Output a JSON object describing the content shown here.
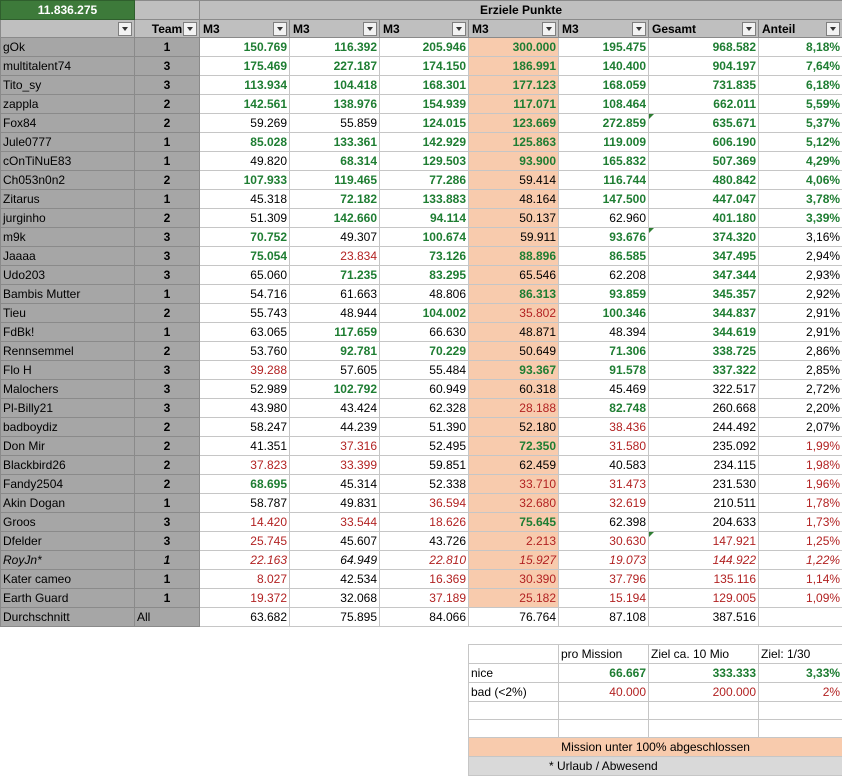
{
  "header": {
    "total": "11.836.275",
    "group_title": "Erziele Punkte",
    "columns": [
      "Team",
      "M3",
      "M3",
      "M3",
      "M3",
      "M3",
      "Gesamt",
      "Anteil"
    ]
  },
  "rows": [
    {
      "name": "gOk",
      "team": "1",
      "m": [
        "150.769",
        "116.392",
        "205.946",
        "300.000",
        "195.475"
      ],
      "c": [
        "g",
        "g",
        "g",
        "g",
        "g"
      ],
      "total": "968.582",
      "tc": "g",
      "share": "8,18%",
      "sc": "g"
    },
    {
      "name": "multitalent74",
      "team": "3",
      "m": [
        "175.469",
        "227.187",
        "174.150",
        "186.991",
        "140.400"
      ],
      "c": [
        "g",
        "g",
        "g",
        "g",
        "g"
      ],
      "total": "904.197",
      "tc": "g",
      "share": "7,64%",
      "sc": "g"
    },
    {
      "name": "Tito_sy",
      "team": "3",
      "m": [
        "113.934",
        "104.418",
        "168.301",
        "177.123",
        "168.059"
      ],
      "c": [
        "g",
        "g",
        "g",
        "g",
        "g"
      ],
      "total": "731.835",
      "tc": "g",
      "share": "6,18%",
      "sc": "g"
    },
    {
      "name": "zappla",
      "team": "2",
      "m": [
        "142.561",
        "138.976",
        "154.939",
        "117.071",
        "108.464"
      ],
      "c": [
        "g",
        "g",
        "g",
        "g",
        "g"
      ],
      "total": "662.011",
      "tc": "g",
      "share": "5,59%",
      "sc": "g"
    },
    {
      "name": "Fox84",
      "team": "2",
      "m": [
        "59.269",
        "55.859",
        "124.015",
        "123.669",
        "272.859"
      ],
      "c": [
        "k",
        "k",
        "g",
        "g",
        "g"
      ],
      "total": "635.671",
      "tc": "g",
      "share": "5,37%",
      "sc": "g"
    },
    {
      "name": "Jule0777",
      "team": "1",
      "m": [
        "85.028",
        "133.361",
        "142.929",
        "125.863",
        "119.009"
      ],
      "c": [
        "g",
        "g",
        "g",
        "g",
        "g"
      ],
      "total": "606.190",
      "tc": "g",
      "share": "5,12%",
      "sc": "g"
    },
    {
      "name": "cOnTiNuE83",
      "team": "1",
      "m": [
        "49.820",
        "68.314",
        "129.503",
        "93.900",
        "165.832"
      ],
      "c": [
        "k",
        "g",
        "g",
        "g",
        "g"
      ],
      "total": "507.369",
      "tc": "g",
      "share": "4,29%",
      "sc": "g"
    },
    {
      "name": "Ch053n0n2",
      "team": "2",
      "m": [
        "107.933",
        "119.465",
        "77.286",
        "59.414",
        "116.744"
      ],
      "c": [
        "g",
        "g",
        "g",
        "k",
        "g"
      ],
      "total": "480.842",
      "tc": "g",
      "share": "4,06%",
      "sc": "g"
    },
    {
      "name": "Zitarus",
      "team": "1",
      "m": [
        "45.318",
        "72.182",
        "133.883",
        "48.164",
        "147.500"
      ],
      "c": [
        "k",
        "g",
        "g",
        "k",
        "g"
      ],
      "total": "447.047",
      "tc": "g",
      "share": "3,78%",
      "sc": "g"
    },
    {
      "name": "jurginho",
      "team": "2",
      "m": [
        "51.309",
        "142.660",
        "94.114",
        "50.137",
        "62.960"
      ],
      "c": [
        "k",
        "g",
        "g",
        "k",
        "k"
      ],
      "total": "401.180",
      "tc": "g",
      "share": "3,39%",
      "sc": "g"
    },
    {
      "name": "m9k",
      "team": "3",
      "m": [
        "70.752",
        "49.307",
        "100.674",
        "59.911",
        "93.676"
      ],
      "c": [
        "g",
        "k",
        "g",
        "k",
        "g"
      ],
      "total": "374.320",
      "tc": "g",
      "share": "3,16%",
      "sc": "k"
    },
    {
      "name": "Jaaaa",
      "team": "3",
      "m": [
        "75.054",
        "23.834",
        "73.126",
        "88.896",
        "86.585"
      ],
      "c": [
        "g",
        "r",
        "g",
        "g",
        "g"
      ],
      "total": "347.495",
      "tc": "g",
      "share": "2,94%",
      "sc": "k"
    },
    {
      "name": "Udo203",
      "team": "3",
      "m": [
        "65.060",
        "71.235",
        "83.295",
        "65.546",
        "62.208"
      ],
      "c": [
        "k",
        "g",
        "g",
        "k",
        "k"
      ],
      "total": "347.344",
      "tc": "g",
      "share": "2,93%",
      "sc": "k"
    },
    {
      "name": "Bambis Mutter",
      "team": "1",
      "m": [
        "54.716",
        "61.663",
        "48.806",
        "86.313",
        "93.859"
      ],
      "c": [
        "k",
        "k",
        "k",
        "g",
        "g"
      ],
      "total": "345.357",
      "tc": "g",
      "share": "2,92%",
      "sc": "k"
    },
    {
      "name": "Tieu",
      "team": "2",
      "m": [
        "55.743",
        "48.944",
        "104.002",
        "35.802",
        "100.346"
      ],
      "c": [
        "k",
        "k",
        "g",
        "r",
        "g"
      ],
      "total": "344.837",
      "tc": "g",
      "share": "2,91%",
      "sc": "k"
    },
    {
      "name": "FdBk!",
      "team": "1",
      "m": [
        "63.065",
        "117.659",
        "66.630",
        "48.871",
        "48.394"
      ],
      "c": [
        "k",
        "g",
        "k",
        "k",
        "k"
      ],
      "total": "344.619",
      "tc": "g",
      "share": "2,91%",
      "sc": "k"
    },
    {
      "name": "Rennsemmel",
      "team": "2",
      "m": [
        "53.760",
        "92.781",
        "70.229",
        "50.649",
        "71.306"
      ],
      "c": [
        "k",
        "g",
        "g",
        "k",
        "g"
      ],
      "total": "338.725",
      "tc": "g",
      "share": "2,86%",
      "sc": "k"
    },
    {
      "name": "Flo H",
      "team": "3",
      "m": [
        "39.288",
        "57.605",
        "55.484",
        "93.367",
        "91.578"
      ],
      "c": [
        "r",
        "k",
        "k",
        "g",
        "g"
      ],
      "total": "337.322",
      "tc": "g",
      "share": "2,85%",
      "sc": "k"
    },
    {
      "name": "Malochers",
      "team": "3",
      "m": [
        "52.989",
        "102.792",
        "60.949",
        "60.318",
        "45.469"
      ],
      "c": [
        "k",
        "g",
        "k",
        "k",
        "k"
      ],
      "total": "322.517",
      "tc": "k",
      "share": "2,72%",
      "sc": "k"
    },
    {
      "name": "Pl-Billy21",
      "team": "3",
      "m": [
        "43.980",
        "43.424",
        "62.328",
        "28.188",
        "82.748"
      ],
      "c": [
        "k",
        "k",
        "k",
        "r",
        "g"
      ],
      "total": "260.668",
      "tc": "k",
      "share": "2,20%",
      "sc": "k"
    },
    {
      "name": "badboydiz",
      "team": "2",
      "m": [
        "58.247",
        "44.239",
        "51.390",
        "52.180",
        "38.436"
      ],
      "c": [
        "k",
        "k",
        "k",
        "k",
        "r"
      ],
      "total": "244.492",
      "tc": "k",
      "share": "2,07%",
      "sc": "k"
    },
    {
      "name": "Don Mir",
      "team": "2",
      "m": [
        "41.351",
        "37.316",
        "52.495",
        "72.350",
        "31.580"
      ],
      "c": [
        "k",
        "r",
        "k",
        "g",
        "r"
      ],
      "total": "235.092",
      "tc": "k",
      "share": "1,99%",
      "sc": "r"
    },
    {
      "name": "Blackbird26",
      "team": "2",
      "m": [
        "37.823",
        "33.399",
        "59.851",
        "62.459",
        "40.583"
      ],
      "c": [
        "r",
        "r",
        "k",
        "k",
        "k"
      ],
      "total": "234.115",
      "tc": "k",
      "share": "1,98%",
      "sc": "r"
    },
    {
      "name": "Fandy2504",
      "team": "2",
      "m": [
        "68.695",
        "45.314",
        "52.338",
        "33.710",
        "31.473"
      ],
      "c": [
        "g",
        "k",
        "k",
        "r",
        "r"
      ],
      "total": "231.530",
      "tc": "k",
      "share": "1,96%",
      "sc": "r"
    },
    {
      "name": "Akin Dogan",
      "team": "1",
      "m": [
        "58.787",
        "49.831",
        "36.594",
        "32.680",
        "32.619"
      ],
      "c": [
        "k",
        "k",
        "r",
        "r",
        "r"
      ],
      "total": "210.511",
      "tc": "k",
      "share": "1,78%",
      "sc": "r"
    },
    {
      "name": "Groos",
      "team": "3",
      "m": [
        "14.420",
        "33.544",
        "18.626",
        "75.645",
        "62.398"
      ],
      "c": [
        "r",
        "r",
        "r",
        "g",
        "k"
      ],
      "total": "204.633",
      "tc": "k",
      "share": "1,73%",
      "sc": "r"
    },
    {
      "name": "Dfelder",
      "team": "3",
      "m": [
        "25.745",
        "45.607",
        "43.726",
        "2.213",
        "30.630"
      ],
      "c": [
        "r",
        "k",
        "k",
        "r",
        "r"
      ],
      "total": "147.921",
      "tc": "r",
      "share": "1,25%",
      "sc": "r"
    },
    {
      "name": "RoyJn*",
      "team": "1",
      "m": [
        "22.163",
        "64.949",
        "22.810",
        "15.927",
        "19.073"
      ],
      "c": [
        "r",
        "k",
        "r",
        "r",
        "r"
      ],
      "total": "144.922",
      "tc": "r",
      "share": "1,22%",
      "sc": "r",
      "italic": true
    },
    {
      "name": "Kater cameo",
      "team": "1",
      "m": [
        "8.027",
        "42.534",
        "16.369",
        "30.390",
        "37.796"
      ],
      "c": [
        "r",
        "k",
        "r",
        "r",
        "r"
      ],
      "total": "135.116",
      "tc": "r",
      "share": "1,14%",
      "sc": "r"
    },
    {
      "name": "Earth Guard",
      "team": "1",
      "m": [
        "19.372",
        "32.068",
        "37.189",
        "25.182",
        "15.194"
      ],
      "c": [
        "r",
        "k",
        "r",
        "r",
        "r"
      ],
      "total": "129.005",
      "tc": "r",
      "share": "1,09%",
      "sc": "r"
    }
  ],
  "average": {
    "name": "Durchschnitt",
    "team": "All",
    "m": [
      "63.682",
      "75.895",
      "84.066",
      "76.764",
      "87.108"
    ],
    "total": "387.516"
  },
  "targets": {
    "headers": [
      "pro Mission",
      "Ziel ca. 10 Mio",
      "Ziel: 1/30"
    ],
    "rows": [
      {
        "label": "nice",
        "v": [
          "66.667",
          "333.333",
          "3,33%"
        ],
        "color": "g"
      },
      {
        "label": "bad (<2%)",
        "v": [
          "40.000",
          "200.000",
          "2%"
        ],
        "color": "r"
      }
    ]
  },
  "legend": {
    "highlight": "Mission unter 100% abgeschlossen",
    "note": "* Urlaub / Abwesend"
  },
  "colors": {
    "green": "#1e7d32",
    "red": "#b22222",
    "highlight": "#f8cbad",
    "header_green": "#3d7a3a"
  }
}
